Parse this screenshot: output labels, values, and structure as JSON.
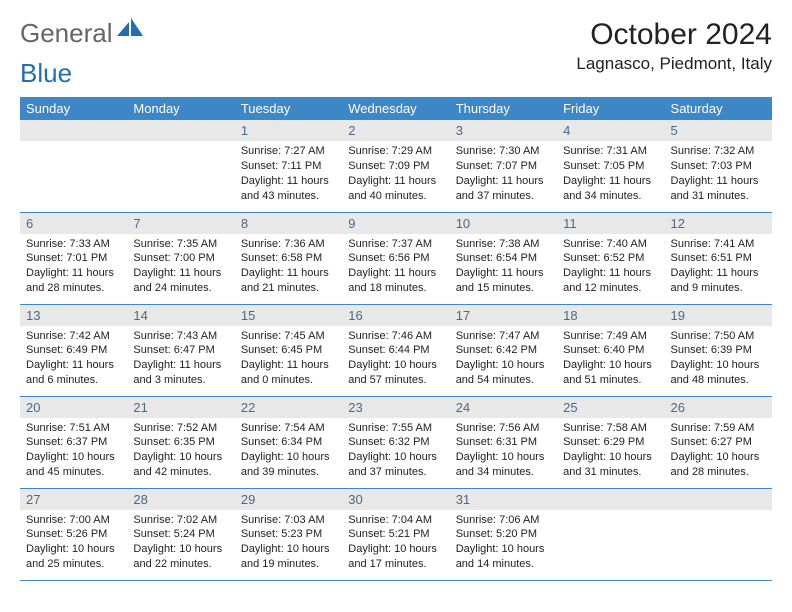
{
  "brand": {
    "part1": "General",
    "part2": "Blue"
  },
  "title": "October 2024",
  "location": "Lagnasco, Piedmont, Italy",
  "colors": {
    "header_bg": "#3d87c7",
    "header_fg": "#ffffff",
    "daynum_bg": "#e8e8e8",
    "daynum_fg": "#4a6a8a",
    "rule": "#3d87c7",
    "brand_blue": "#1f6fb2"
  },
  "dow": [
    "Sunday",
    "Monday",
    "Tuesday",
    "Wednesday",
    "Thursday",
    "Friday",
    "Saturday"
  ],
  "weeks": [
    [
      null,
      null,
      {
        "n": "1",
        "sr": "Sunrise: 7:27 AM",
        "ss": "Sunset: 7:11 PM",
        "d1": "Daylight: 11 hours",
        "d2": "and 43 minutes."
      },
      {
        "n": "2",
        "sr": "Sunrise: 7:29 AM",
        "ss": "Sunset: 7:09 PM",
        "d1": "Daylight: 11 hours",
        "d2": "and 40 minutes."
      },
      {
        "n": "3",
        "sr": "Sunrise: 7:30 AM",
        "ss": "Sunset: 7:07 PM",
        "d1": "Daylight: 11 hours",
        "d2": "and 37 minutes."
      },
      {
        "n": "4",
        "sr": "Sunrise: 7:31 AM",
        "ss": "Sunset: 7:05 PM",
        "d1": "Daylight: 11 hours",
        "d2": "and 34 minutes."
      },
      {
        "n": "5",
        "sr": "Sunrise: 7:32 AM",
        "ss": "Sunset: 7:03 PM",
        "d1": "Daylight: 11 hours",
        "d2": "and 31 minutes."
      }
    ],
    [
      {
        "n": "6",
        "sr": "Sunrise: 7:33 AM",
        "ss": "Sunset: 7:01 PM",
        "d1": "Daylight: 11 hours",
        "d2": "and 28 minutes."
      },
      {
        "n": "7",
        "sr": "Sunrise: 7:35 AM",
        "ss": "Sunset: 7:00 PM",
        "d1": "Daylight: 11 hours",
        "d2": "and 24 minutes."
      },
      {
        "n": "8",
        "sr": "Sunrise: 7:36 AM",
        "ss": "Sunset: 6:58 PM",
        "d1": "Daylight: 11 hours",
        "d2": "and 21 minutes."
      },
      {
        "n": "9",
        "sr": "Sunrise: 7:37 AM",
        "ss": "Sunset: 6:56 PM",
        "d1": "Daylight: 11 hours",
        "d2": "and 18 minutes."
      },
      {
        "n": "10",
        "sr": "Sunrise: 7:38 AM",
        "ss": "Sunset: 6:54 PM",
        "d1": "Daylight: 11 hours",
        "d2": "and 15 minutes."
      },
      {
        "n": "11",
        "sr": "Sunrise: 7:40 AM",
        "ss": "Sunset: 6:52 PM",
        "d1": "Daylight: 11 hours",
        "d2": "and 12 minutes."
      },
      {
        "n": "12",
        "sr": "Sunrise: 7:41 AM",
        "ss": "Sunset: 6:51 PM",
        "d1": "Daylight: 11 hours",
        "d2": "and 9 minutes."
      }
    ],
    [
      {
        "n": "13",
        "sr": "Sunrise: 7:42 AM",
        "ss": "Sunset: 6:49 PM",
        "d1": "Daylight: 11 hours",
        "d2": "and 6 minutes."
      },
      {
        "n": "14",
        "sr": "Sunrise: 7:43 AM",
        "ss": "Sunset: 6:47 PM",
        "d1": "Daylight: 11 hours",
        "d2": "and 3 minutes."
      },
      {
        "n": "15",
        "sr": "Sunrise: 7:45 AM",
        "ss": "Sunset: 6:45 PM",
        "d1": "Daylight: 11 hours",
        "d2": "and 0 minutes."
      },
      {
        "n": "16",
        "sr": "Sunrise: 7:46 AM",
        "ss": "Sunset: 6:44 PM",
        "d1": "Daylight: 10 hours",
        "d2": "and 57 minutes."
      },
      {
        "n": "17",
        "sr": "Sunrise: 7:47 AM",
        "ss": "Sunset: 6:42 PM",
        "d1": "Daylight: 10 hours",
        "d2": "and 54 minutes."
      },
      {
        "n": "18",
        "sr": "Sunrise: 7:49 AM",
        "ss": "Sunset: 6:40 PM",
        "d1": "Daylight: 10 hours",
        "d2": "and 51 minutes."
      },
      {
        "n": "19",
        "sr": "Sunrise: 7:50 AM",
        "ss": "Sunset: 6:39 PM",
        "d1": "Daylight: 10 hours",
        "d2": "and 48 minutes."
      }
    ],
    [
      {
        "n": "20",
        "sr": "Sunrise: 7:51 AM",
        "ss": "Sunset: 6:37 PM",
        "d1": "Daylight: 10 hours",
        "d2": "and 45 minutes."
      },
      {
        "n": "21",
        "sr": "Sunrise: 7:52 AM",
        "ss": "Sunset: 6:35 PM",
        "d1": "Daylight: 10 hours",
        "d2": "and 42 minutes."
      },
      {
        "n": "22",
        "sr": "Sunrise: 7:54 AM",
        "ss": "Sunset: 6:34 PM",
        "d1": "Daylight: 10 hours",
        "d2": "and 39 minutes."
      },
      {
        "n": "23",
        "sr": "Sunrise: 7:55 AM",
        "ss": "Sunset: 6:32 PM",
        "d1": "Daylight: 10 hours",
        "d2": "and 37 minutes."
      },
      {
        "n": "24",
        "sr": "Sunrise: 7:56 AM",
        "ss": "Sunset: 6:31 PM",
        "d1": "Daylight: 10 hours",
        "d2": "and 34 minutes."
      },
      {
        "n": "25",
        "sr": "Sunrise: 7:58 AM",
        "ss": "Sunset: 6:29 PM",
        "d1": "Daylight: 10 hours",
        "d2": "and 31 minutes."
      },
      {
        "n": "26",
        "sr": "Sunrise: 7:59 AM",
        "ss": "Sunset: 6:27 PM",
        "d1": "Daylight: 10 hours",
        "d2": "and 28 minutes."
      }
    ],
    [
      {
        "n": "27",
        "sr": "Sunrise: 7:00 AM",
        "ss": "Sunset: 5:26 PM",
        "d1": "Daylight: 10 hours",
        "d2": "and 25 minutes."
      },
      {
        "n": "28",
        "sr": "Sunrise: 7:02 AM",
        "ss": "Sunset: 5:24 PM",
        "d1": "Daylight: 10 hours",
        "d2": "and 22 minutes."
      },
      {
        "n": "29",
        "sr": "Sunrise: 7:03 AM",
        "ss": "Sunset: 5:23 PM",
        "d1": "Daylight: 10 hours",
        "d2": "and 19 minutes."
      },
      {
        "n": "30",
        "sr": "Sunrise: 7:04 AM",
        "ss": "Sunset: 5:21 PM",
        "d1": "Daylight: 10 hours",
        "d2": "and 17 minutes."
      },
      {
        "n": "31",
        "sr": "Sunrise: 7:06 AM",
        "ss": "Sunset: 5:20 PM",
        "d1": "Daylight: 10 hours",
        "d2": "and 14 minutes."
      },
      null,
      null
    ]
  ]
}
